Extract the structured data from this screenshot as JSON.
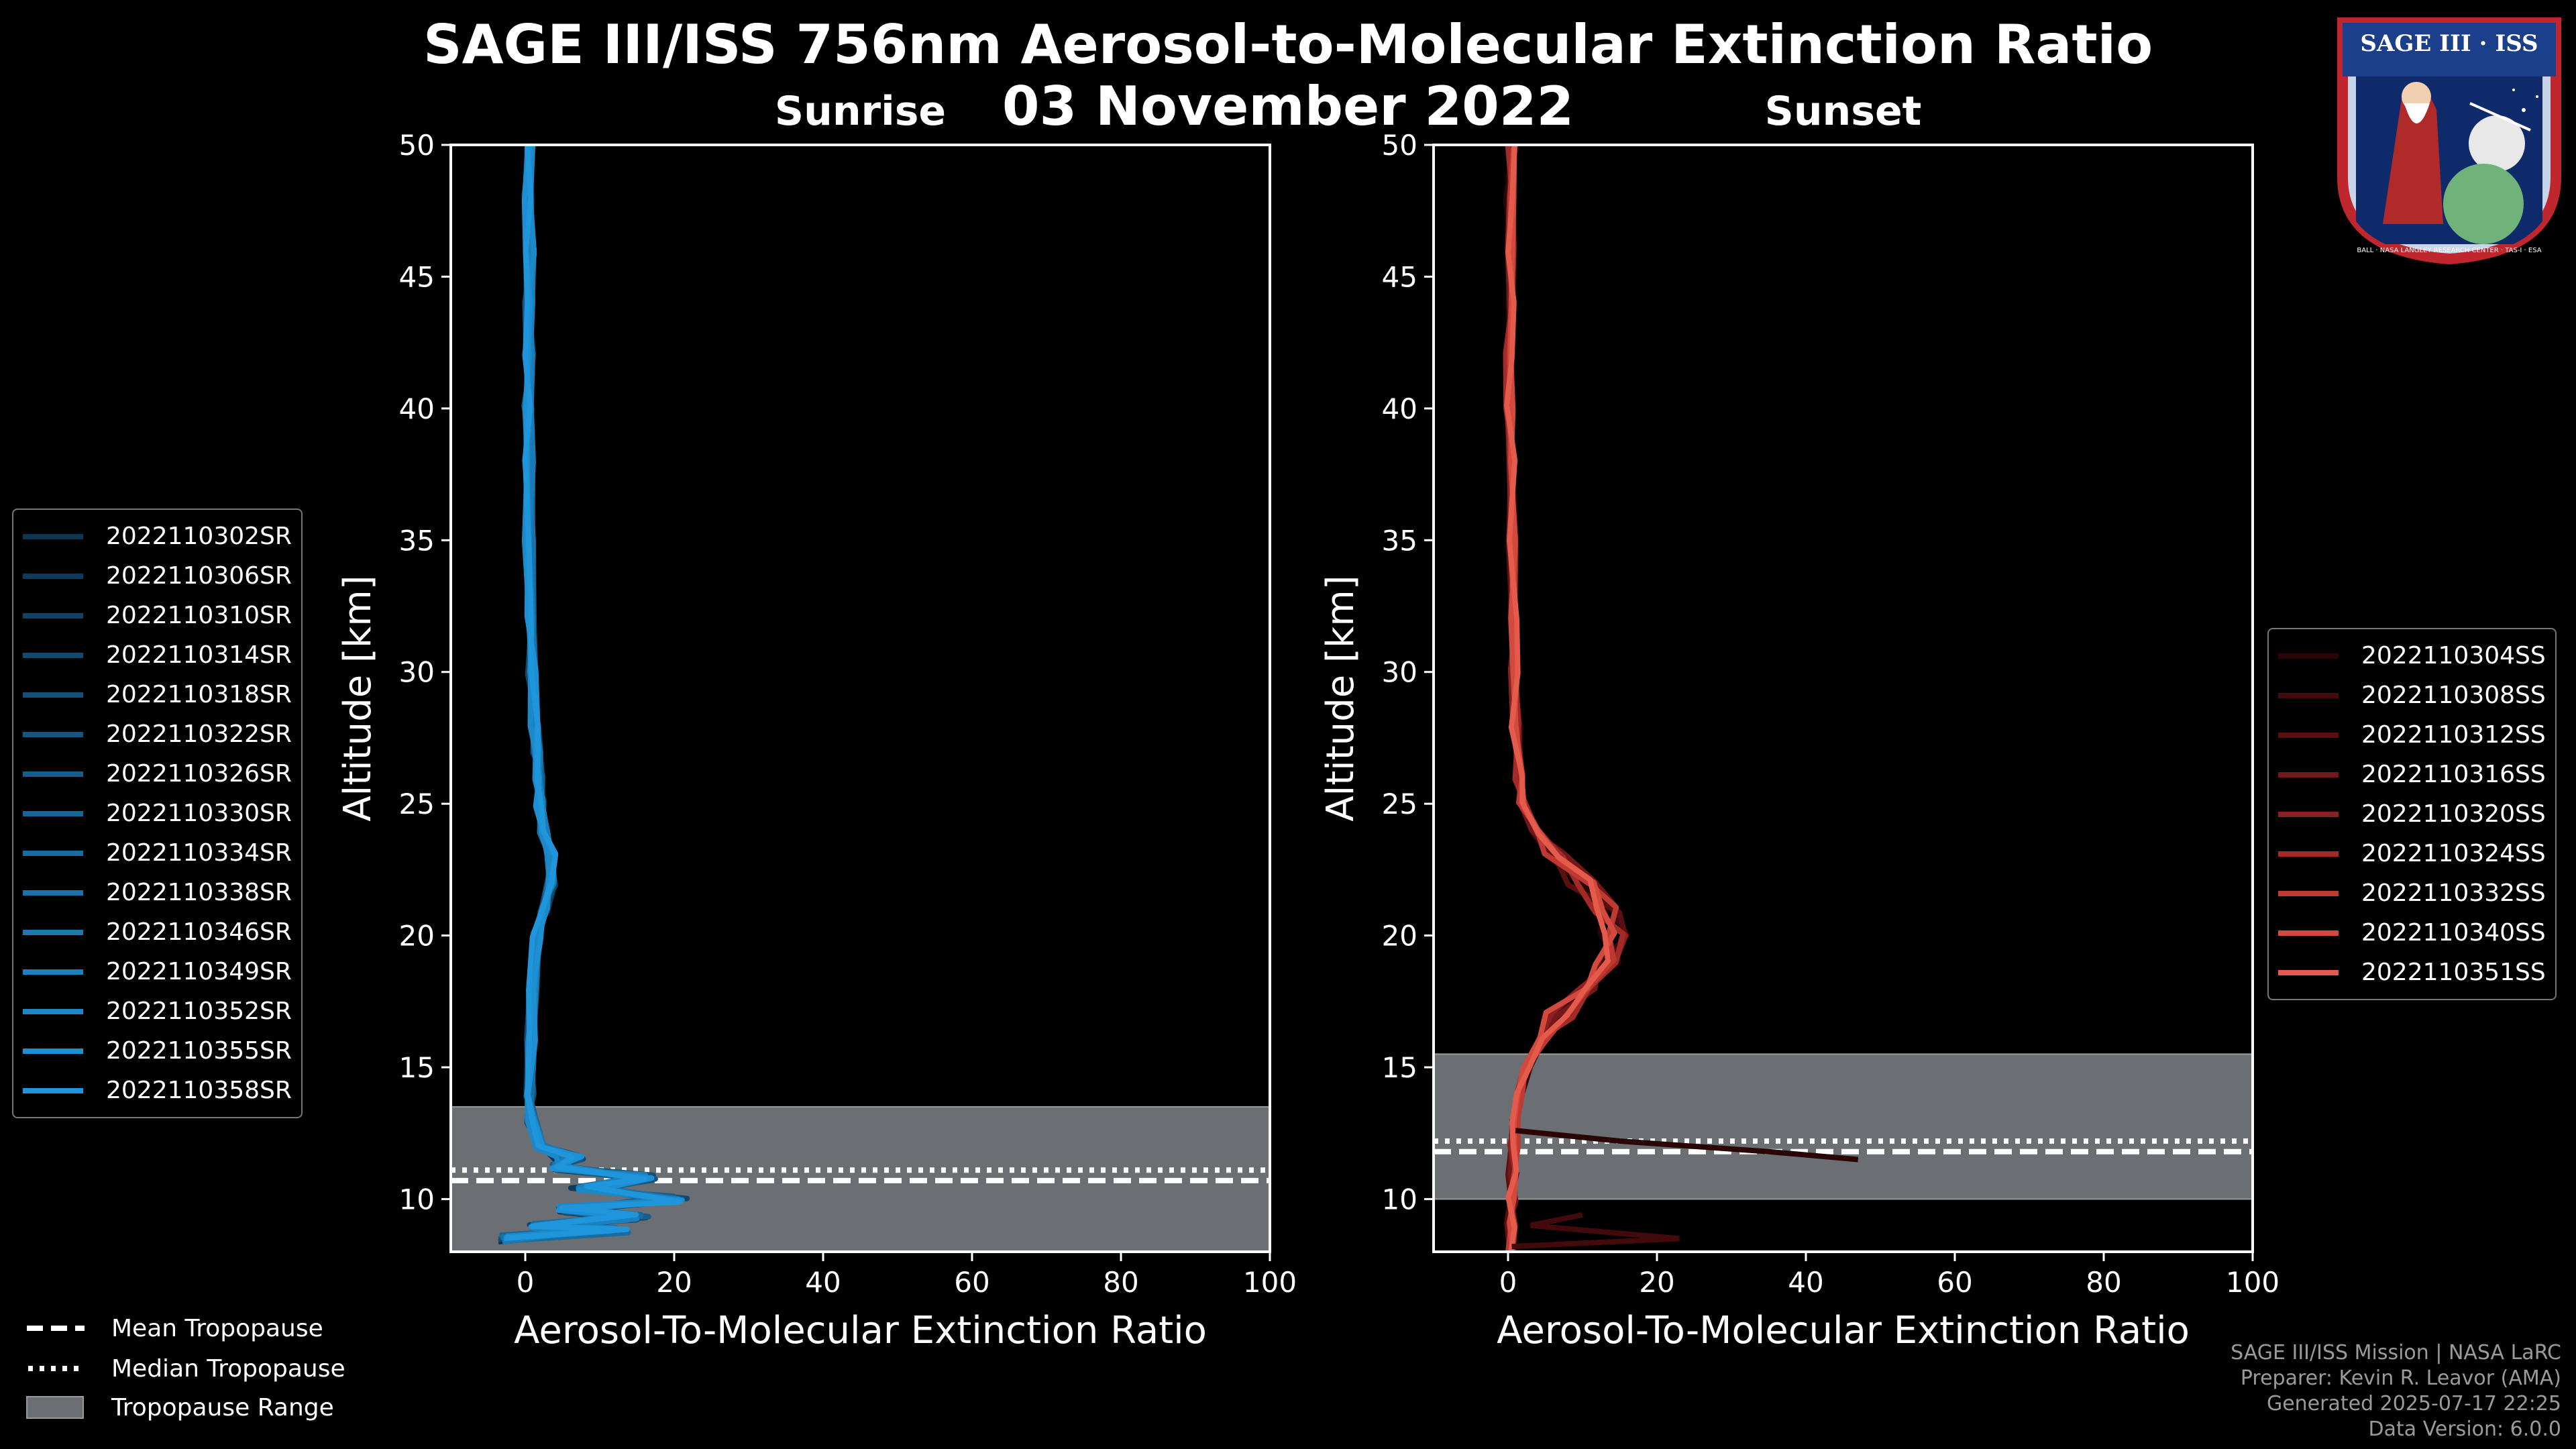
{
  "title": {
    "line1": "SAGE III/ISS 756nm Aerosol-to-Molecular Extinction Ratio",
    "line2": "03 November 2022"
  },
  "logo": {
    "text": "SAGE III · ISS",
    "ring_text": "BALL · NASA LANGLEY RESEARCH CENTER · TAS-I · ESA"
  },
  "footer": {
    "line1": "SAGE III/ISS Mission | NASA LaRC",
    "line2": "Preparer: Kevin R. Leavor (AMA)",
    "line3": "Generated 2025-07-17 22:25",
    "line4": "Data Version: 6.0.0"
  },
  "bottom_legend": {
    "mean": "Mean Tropopause",
    "median": "Median Tropopause",
    "range": "Tropopause Range"
  },
  "colors": {
    "sunrise": "#1f8fd6",
    "sunset": "#e0574a",
    "range": "#6b6e72",
    "background": "#000000"
  },
  "chart_data": [
    {
      "type": "line",
      "title": "Sunrise",
      "xlabel": "Aerosol-To-Molecular Extinction Ratio",
      "ylabel": "Altitude [km]",
      "xlim": [
        -10,
        100
      ],
      "ylim": [
        8,
        50
      ],
      "xticks": [
        "0",
        "20",
        "40",
        "60",
        "80",
        "100"
      ],
      "yticks": [
        "10",
        "15",
        "20",
        "25",
        "30",
        "35",
        "40",
        "45",
        "50"
      ],
      "tropopause": {
        "mean": 10.7,
        "median": 11.1,
        "range": [
          8,
          13.5
        ]
      },
      "legend_position": "left",
      "series": [
        {
          "name": "2022110302SR",
          "color": "#0d3550"
        },
        {
          "name": "2022110306SR",
          "color": "#0f3b5a"
        },
        {
          "name": "2022110310SR",
          "color": "#114264"
        },
        {
          "name": "2022110314SR",
          "color": "#12496e"
        },
        {
          "name": "2022110318SR",
          "color": "#145078"
        },
        {
          "name": "2022110322SR",
          "color": "#155782"
        },
        {
          "name": "2022110326SR",
          "color": "#165e8c"
        },
        {
          "name": "2022110330SR",
          "color": "#176596"
        },
        {
          "name": "2022110334SR",
          "color": "#186ca0"
        },
        {
          "name": "2022110338SR",
          "color": "#1973aa"
        },
        {
          "name": "2022110346SR",
          "color": "#1a7ab4"
        },
        {
          "name": "2022110349SR",
          "color": "#1b81be"
        },
        {
          "name": "2022110352SR",
          "color": "#1c88c8"
        },
        {
          "name": "2022110355SR",
          "color": "#1d8fd2"
        },
        {
          "name": "2022110358SR",
          "color": "#1f96dc"
        }
      ],
      "profile": {
        "alt": [
          8.5,
          8.8,
          9.0,
          9.3,
          9.6,
          10.0,
          10.4,
          10.8,
          11.2,
          11.6,
          12,
          13,
          14,
          16,
          18,
          20,
          21,
          22,
          23,
          24,
          25,
          26,
          27,
          28,
          30,
          32,
          35,
          38,
          40,
          42,
          44,
          46,
          48,
          50
        ],
        "x": [
          -3,
          12,
          1,
          15,
          5,
          20,
          8,
          16,
          4,
          6,
          2,
          0.8,
          0.6,
          0.8,
          1.0,
          1.5,
          2.5,
          3.5,
          3.5,
          2.5,
          2.0,
          1.8,
          1.5,
          1.2,
          0.9,
          0.7,
          0.5,
          0.5,
          0.4,
          0.5,
          0.4,
          0.6,
          0.3,
          0.5
        ]
      }
    },
    {
      "type": "line",
      "title": "Sunset",
      "xlabel": "Aerosol-To-Molecular Extinction Ratio",
      "ylabel": "Altitude [km]",
      "xlim": [
        -10,
        100
      ],
      "ylim": [
        8,
        50
      ],
      "xticks": [
        "0",
        "20",
        "40",
        "60",
        "80",
        "100"
      ],
      "yticks": [
        "10",
        "15",
        "20",
        "25",
        "30",
        "35",
        "40",
        "45",
        "50"
      ],
      "tropopause": {
        "mean": 11.8,
        "median": 12.2,
        "range": [
          10,
          15.5
        ]
      },
      "legend_position": "right",
      "series": [
        {
          "name": "2022110304SS",
          "color": "#2a0505"
        },
        {
          "name": "2022110308SS",
          "color": "#420a0a"
        },
        {
          "name": "2022110312SS",
          "color": "#5a1010"
        },
        {
          "name": "2022110316SS",
          "color": "#72171a"
        },
        {
          "name": "2022110320SS",
          "color": "#8a2020"
        },
        {
          "name": "2022110324SS",
          "color": "#a42a27"
        },
        {
          "name": "2022110332SS",
          "color": "#bd3a32"
        },
        {
          "name": "2022110340SS",
          "color": "#d24a3e"
        },
        {
          "name": "2022110351SS",
          "color": "#e45a4b"
        }
      ],
      "profile": {
        "alt": [
          8.0,
          9,
          10,
          11,
          12,
          13,
          14,
          15,
          16,
          17,
          18,
          19,
          20,
          21,
          22,
          23,
          24,
          25,
          26,
          28,
          30,
          32,
          35,
          38,
          40,
          42,
          44,
          46,
          48,
          50
        ],
        "x": [
          0.2,
          0.4,
          0.5,
          0.6,
          0.8,
          1.0,
          1.5,
          2.5,
          4.5,
          7,
          10,
          13,
          14,
          13,
          10,
          6,
          3.5,
          2,
          1.5,
          1.0,
          0.8,
          0.6,
          0.5,
          0.4,
          0.3,
          0.2,
          0.3,
          0.2,
          0.3,
          0.4
        ]
      },
      "outliers": [
        {
          "alt": [
            12.6,
            12.2,
            11.8,
            11.5
          ],
          "x": [
            1,
            15,
            35,
            47
          ]
        },
        {
          "alt": [
            8.2,
            8.5,
            9.0,
            9.4
          ],
          "x": [
            0.5,
            23,
            3,
            10
          ]
        }
      ]
    }
  ]
}
